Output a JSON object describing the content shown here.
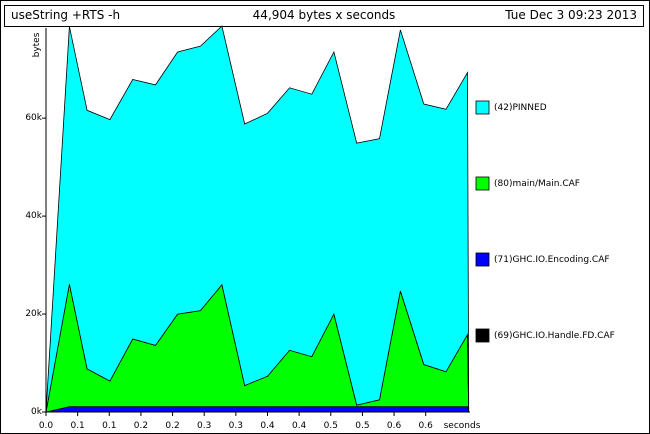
{
  "header": {
    "program": "useString +RTS -h",
    "total": "44,904 bytes x seconds",
    "date": "Tue Dec  3 09:23 2013"
  },
  "chart_data": {
    "type": "area",
    "stacked": true,
    "title": "",
    "xlabel": "seconds",
    "ylabel": "bytes",
    "xlim": [
      0,
      0.67
    ],
    "ylim": [
      0,
      78000
    ],
    "x_ticks": [
      "0.0",
      "0.1",
      "0.1",
      "0.2",
      "0.2",
      "0.3",
      "0.3",
      "0.4",
      "0.4",
      "0.5",
      "0.5",
      "0.6",
      "0.6"
    ],
    "x_tick_values": [
      0,
      0.05,
      0.1,
      0.15,
      0.2,
      0.25,
      0.3,
      0.35,
      0.4,
      0.45,
      0.5,
      0.55,
      0.6
    ],
    "y_ticks": [
      "0k",
      "20k",
      "40k",
      "60k"
    ],
    "y_tick_values": [
      0,
      20000,
      40000,
      60000
    ],
    "x": [
      0.0,
      0.037,
      0.065,
      0.101,
      0.137,
      0.173,
      0.208,
      0.244,
      0.278,
      0.314,
      0.35,
      0.385,
      0.42,
      0.455,
      0.491,
      0.527,
      0.56,
      0.597,
      0.632,
      0.666,
      0.668
    ],
    "series": [
      {
        "name": "(69)GHC.IO.Handle.FD.CAF",
        "color": "#000000",
        "values": [
          0,
          0,
          0,
          0,
          0,
          0,
          0,
          0,
          0,
          0,
          0,
          0,
          0,
          0,
          0,
          0,
          0,
          0,
          0,
          0,
          0
        ]
      },
      {
        "name": "(71)GHC.IO.Encoding.CAF",
        "color": "#0000ff",
        "values": [
          0,
          1100,
          1100,
          1100,
          1100,
          1100,
          1100,
          1100,
          1100,
          1100,
          1100,
          1100,
          1100,
          1100,
          1100,
          1100,
          1100,
          1100,
          1100,
          1100,
          0
        ]
      },
      {
        "name": "(80)main/Main.CAF",
        "color": "#00ff00",
        "values": [
          0,
          25000,
          7700,
          5200,
          13800,
          12500,
          18900,
          19600,
          24900,
          4300,
          6200,
          11500,
          10200,
          18900,
          300,
          1400,
          23600,
          8600,
          7100,
          14700,
          0
        ]
      },
      {
        "name": "(42)PINNED",
        "color": "#00ffff",
        "values": [
          0,
          52600,
          52800,
          53400,
          53000,
          53200,
          53500,
          54000,
          52800,
          53400,
          53700,
          53600,
          53600,
          53500,
          53500,
          53300,
          53300,
          53200,
          53600,
          53500,
          0
        ]
      }
    ]
  }
}
